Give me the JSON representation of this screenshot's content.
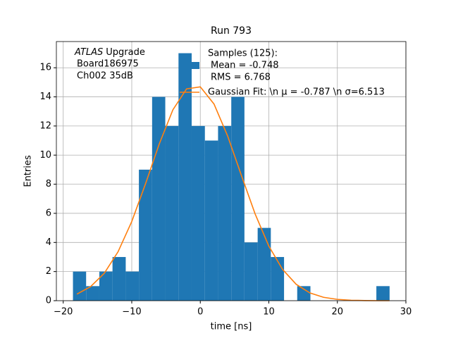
{
  "chart_data": {
    "type": "histogram",
    "title": "Run 793",
    "xlabel": "time [ns]",
    "ylabel": "Entries",
    "annotation": {
      "experiment": "ATLAS",
      "lines": [
        "Upgrade",
        "Board186975",
        "Ch002 35dB"
      ]
    },
    "bins": [
      -18.58,
      -16.66,
      -14.73,
      -12.81,
      -10.88,
      -8.96,
      -7.03,
      -5.11,
      -3.18,
      -1.26,
      0.67,
      2.59,
      4.52,
      6.44,
      8.37,
      10.29,
      12.22,
      14.14,
      16.07,
      17.99,
      19.92,
      21.84,
      23.77,
      25.69,
      27.62
    ],
    "series": [
      {
        "name": [
          "Samples (125):",
          "Mean = -0.748",
          "RMS = 6.768"
        ],
        "color": "#1f77b4",
        "values": [
          2,
          1,
          2,
          3,
          2,
          9,
          14,
          12,
          17,
          12,
          11,
          12,
          14,
          4,
          5,
          3,
          0,
          1,
          0,
          0,
          0,
          0,
          0,
          1
        ]
      },
      {
        "name": [
          "Gaussian Fit: \\n μ = -0.787 \\n σ=6.513"
        ],
        "color": "#ff7f0e",
        "x": [
          -18,
          -16,
          -14,
          -12,
          -10,
          -8,
          -6,
          -4,
          -2,
          0,
          2,
          4,
          6,
          8,
          10,
          12,
          14,
          16,
          18,
          20,
          22,
          24,
          26,
          27.6
        ],
        "values": [
          0.45,
          0.97,
          1.89,
          3.36,
          5.44,
          8.02,
          10.75,
          13.11,
          14.55,
          14.69,
          13.51,
          11.3,
          8.6,
          5.96,
          3.75,
          2.15,
          1.12,
          0.53,
          0.23,
          0.09,
          0.03,
          0.01,
          0,
          0
        ]
      }
    ],
    "xlim": [
      -21.0,
      30.0
    ],
    "ylim": [
      0,
      17.8
    ],
    "xticks": [
      {
        "value": -20,
        "label": "−20"
      },
      {
        "value": -10,
        "label": "−10"
      },
      0,
      10,
      20,
      30
    ],
    "yticks": [
      0,
      2,
      4,
      6,
      8,
      10,
      12,
      14,
      16
    ],
    "grid": true
  }
}
